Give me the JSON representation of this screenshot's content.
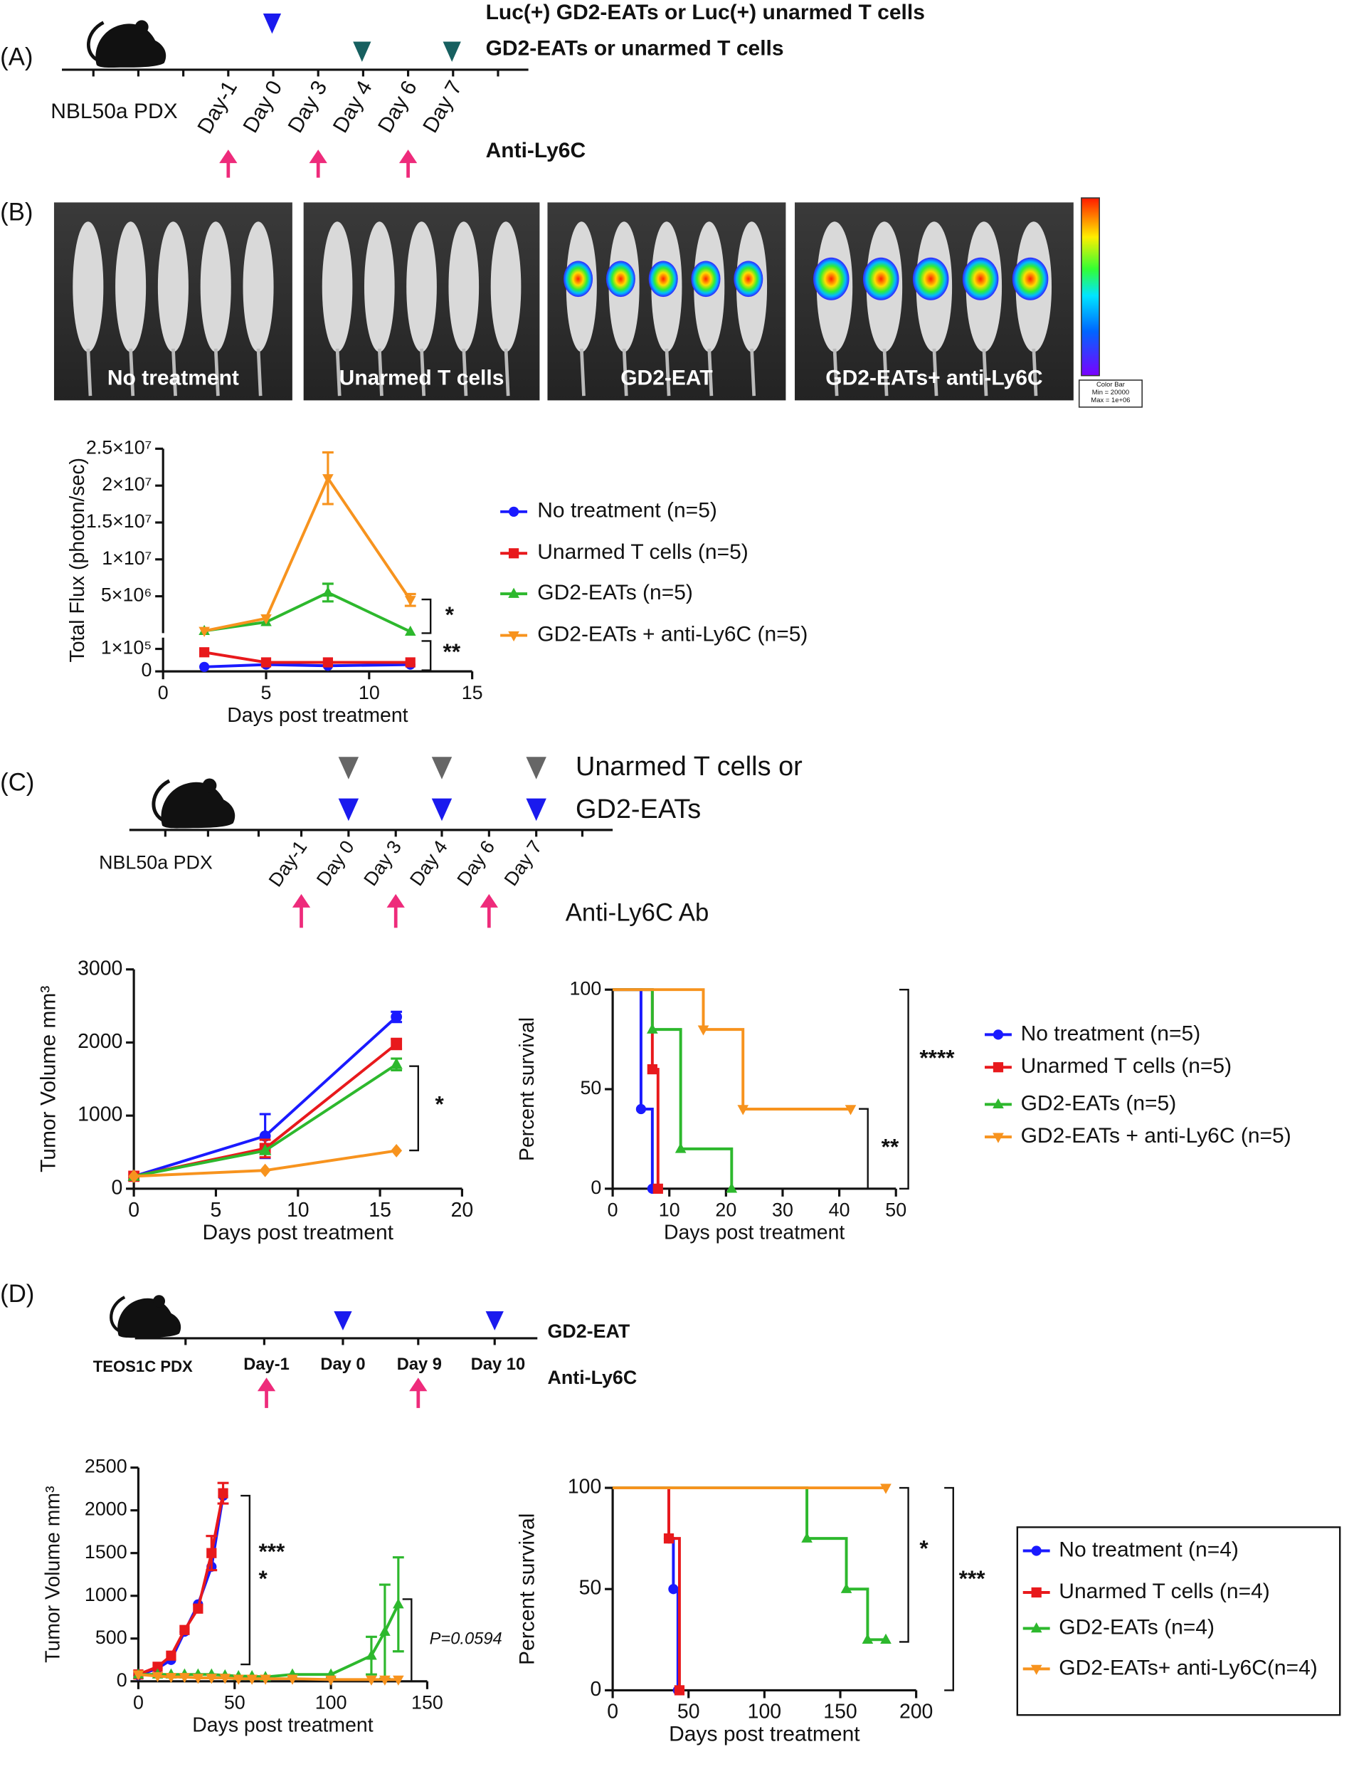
{
  "panel_a": {
    "label": "(A)",
    "legend": [
      "Luc(+) GD2-EATs  or Luc(+) unarmed T cells",
      "GD2-EATs or  unarmed T cells"
    ],
    "model": "NBL50a PDX",
    "days": [
      "Day-1",
      "Day 0",
      "Day 3",
      "Day 4",
      "Day 6",
      "Day 7"
    ],
    "antibody": "Anti-Ly6C"
  },
  "panel_b": {
    "label": "(B)",
    "images": [
      "No treatment",
      "Unarmed T cells",
      "GD2-EAT",
      "GD2-EATs+ anti-Ly6C"
    ],
    "color_bar": [
      "Color Bar",
      "Min = 20000",
      "Max = 1e+06"
    ]
  },
  "panel_c": {
    "label": "(C)",
    "legend": [
      "Unarmed T cells or",
      "GD2-EATs"
    ],
    "model": "NBL50a PDX",
    "days": [
      "Day-1",
      "Day 0",
      "Day 3",
      "Day 4",
      "Day 6",
      "Day 7"
    ],
    "antibody": "Anti-Ly6C Ab"
  },
  "panel_d": {
    "label": "(D)",
    "legend": [
      "GD2-EAT"
    ],
    "model": "TEOS1C PDX",
    "days": [
      "Day-1",
      "Day 0",
      "Day 9",
      "Day 10"
    ],
    "antibody": "Anti-Ly6C"
  },
  "chart_data": [
    {
      "type": "line",
      "x_label": "Days post treatment",
      "y_label": "Total Flux (photon/sec)",
      "x": [
        2,
        5,
        8,
        12
      ],
      "xlim": [
        0,
        15
      ],
      "xticks": [
        0,
        5,
        10,
        15
      ],
      "y_segments": [
        {
          "ylim": [
            0,
            150000
          ],
          "yticks": [
            0,
            {
              "value": 100000,
              "label": "1×10⁵"
            }
          ]
        },
        {
          "ylim": [
            0,
            25000000
          ],
          "yticks": [
            {
              "value": 5000000,
              "label": "5×10⁶"
            },
            {
              "value": 10000000,
              "label": "1×10⁷"
            },
            {
              "value": 15000000,
              "label": "1.5×10⁷"
            },
            {
              "value": 20000000,
              "label": "2×10⁷"
            },
            {
              "value": 25000000,
              "label": "2.5×10⁷"
            }
          ]
        }
      ],
      "series": [
        {
          "name": "No treatment (n=5)",
          "color": "#1a1aff",
          "marker": "circle",
          "values": [
            20000,
            30000,
            25000,
            30000
          ]
        },
        {
          "name": "Unarmed T cells (n=5)",
          "color": "#e8191c",
          "marker": "square",
          "values": [
            85000,
            40000,
            40000,
            40000
          ]
        },
        {
          "name": "GD2-EATs (n=5)",
          "color": "#2db82d",
          "marker": "triangle-up",
          "values": [
            300000,
            1500000,
            5500000,
            200000
          ],
          "errors": [
            null,
            null,
            1200000,
            null
          ]
        },
        {
          "name": "GD2-EATs + anti-Ly6C (n=5)",
          "color": "#f7931e",
          "marker": "triangle-down",
          "values": [
            300000,
            2000000,
            21000000,
            4500000
          ],
          "errors": [
            null,
            null,
            3500000,
            800000
          ]
        }
      ],
      "annotations": [
        "*",
        "**"
      ]
    },
    {
      "type": "line",
      "x_label": "Days post treatment",
      "y_label": "Tumor Volume mm³",
      "x": [
        0,
        8,
        16
      ],
      "xlim": [
        0,
        20
      ],
      "xticks": [
        0,
        5,
        10,
        15,
        20
      ],
      "ylim": [
        0,
        3000
      ],
      "yticks": [
        0,
        1000,
        2000,
        3000
      ],
      "series": [
        {
          "color": "#1a1aff",
          "marker": "circle",
          "values": [
            170,
            720,
            2350
          ],
          "errors": [
            null,
            300,
            70
          ]
        },
        {
          "color": "#e8191c",
          "marker": "square",
          "values": [
            170,
            550,
            1980
          ],
          "errors": [
            null,
            120,
            70
          ]
        },
        {
          "color": "#2db82d",
          "marker": "triangle-up",
          "values": [
            170,
            520,
            1700
          ],
          "errors": [
            null,
            null,
            80
          ]
        },
        {
          "color": "#f7931e",
          "marker": "diamond",
          "values": [
            170,
            250,
            520
          ]
        }
      ],
      "annotations": [
        "*"
      ]
    },
    {
      "type": "step",
      "x_label": "Days post treatment",
      "y_label": "Percent survival",
      "xlim": [
        0,
        50
      ],
      "xticks": [
        0,
        10,
        20,
        30,
        40,
        50
      ],
      "ylim": [
        0,
        100
      ],
      "yticks": [
        0,
        50,
        100
      ],
      "series": [
        {
          "name": "No treatment (n=5)",
          "color": "#1a1aff",
          "marker": "circle",
          "x": [
            0,
            5,
            7
          ],
          "values": [
            100,
            40,
            0
          ]
        },
        {
          "name": "Unarmed T cells (n=5)",
          "color": "#e8191c",
          "marker": "square",
          "x": [
            0,
            7,
            8
          ],
          "values": [
            100,
            60,
            0
          ]
        },
        {
          "name": "GD2-EATs (n=5)",
          "color": "#2db82d",
          "marker": "triangle-up",
          "x": [
            0,
            7,
            12,
            21
          ],
          "values": [
            100,
            80,
            20,
            0
          ]
        },
        {
          "name": "GD2-EATs + anti-Ly6C (n=5)",
          "color": "#f7931e",
          "marker": "triangle-down",
          "x": [
            0,
            16,
            23,
            42
          ],
          "values": [
            100,
            80,
            40,
            40
          ]
        }
      ],
      "annotations": [
        "****",
        "**"
      ]
    },
    {
      "type": "line",
      "x_label": "Days post treatment",
      "y_label": "Tumor Volume mm³",
      "xlim": [
        0,
        150
      ],
      "xticks": [
        0,
        50,
        100,
        150
      ],
      "ylim": [
        0,
        2500
      ],
      "yticks": [
        0,
        500,
        1000,
        1500,
        2000,
        2500
      ],
      "series": [
        {
          "color": "#1a1aff",
          "marker": "circle",
          "x": [
            0,
            10,
            17,
            24,
            31,
            38,
            44
          ],
          "values": [
            70,
            150,
            250,
            580,
            900,
            1340,
            2170
          ]
        },
        {
          "color": "#e8191c",
          "marker": "square",
          "x": [
            0,
            10,
            17,
            24,
            31,
            38,
            44
          ],
          "values": [
            80,
            170,
            300,
            600,
            850,
            1500,
            2200
          ],
          "errors": [
            null,
            null,
            null,
            null,
            null,
            200,
            120
          ]
        },
        {
          "color": "#2db82d",
          "marker": "triangle-up",
          "x": [
            0,
            10,
            17,
            24,
            31,
            38,
            45,
            52,
            59,
            66,
            80,
            100,
            121,
            128,
            135
          ],
          "values": [
            80,
            80,
            80,
            80,
            80,
            80,
            70,
            60,
            60,
            50,
            80,
            80,
            300,
            580,
            900
          ],
          "errors": [
            null,
            null,
            null,
            null,
            null,
            null,
            null,
            null,
            null,
            null,
            null,
            null,
            220,
            550,
            550
          ]
        },
        {
          "color": "#f7931e",
          "marker": "triangle-down",
          "x": [
            0,
            10,
            17,
            24,
            31,
            38,
            45,
            52,
            59,
            66,
            80,
            100,
            121,
            128,
            135
          ],
          "values": [
            80,
            60,
            50,
            50,
            40,
            40,
            40,
            30,
            30,
            30,
            30,
            20,
            20,
            20,
            20
          ]
        }
      ],
      "annotations": [
        "***",
        "*",
        "P=0.0594"
      ]
    },
    {
      "type": "step",
      "x_label": "Days post treatment",
      "y_label": "Percent survival",
      "xlim": [
        0,
        200
      ],
      "xticks": [
        0,
        50,
        100,
        150,
        200
      ],
      "ylim": [
        0,
        100
      ],
      "yticks": [
        0,
        50,
        100
      ],
      "legend_frame": true,
      "series": [
        {
          "name": "No treatment (n=4)",
          "color": "#1a1aff",
          "marker": "circle",
          "x": [
            0,
            37,
            40,
            43
          ],
          "values": [
            100,
            75,
            50,
            0
          ]
        },
        {
          "name": "Unarmed T cells (n=4)",
          "color": "#e8191c",
          "marker": "square",
          "x": [
            0,
            37,
            44
          ],
          "values": [
            100,
            75,
            0
          ]
        },
        {
          "name": "GD2-EATs  (n=4)",
          "color": "#2db82d",
          "marker": "triangle-up",
          "x": [
            0,
            128,
            154,
            168,
            180
          ],
          "values": [
            100,
            75,
            50,
            25,
            25
          ]
        },
        {
          "name": "GD2-EATs+ anti-Ly6C(n=4)",
          "color": "#f7931e",
          "marker": "triangle-down",
          "x": [
            0,
            180
          ],
          "values": [
            100,
            100
          ]
        }
      ],
      "annotations": [
        "*",
        "***"
      ]
    }
  ]
}
